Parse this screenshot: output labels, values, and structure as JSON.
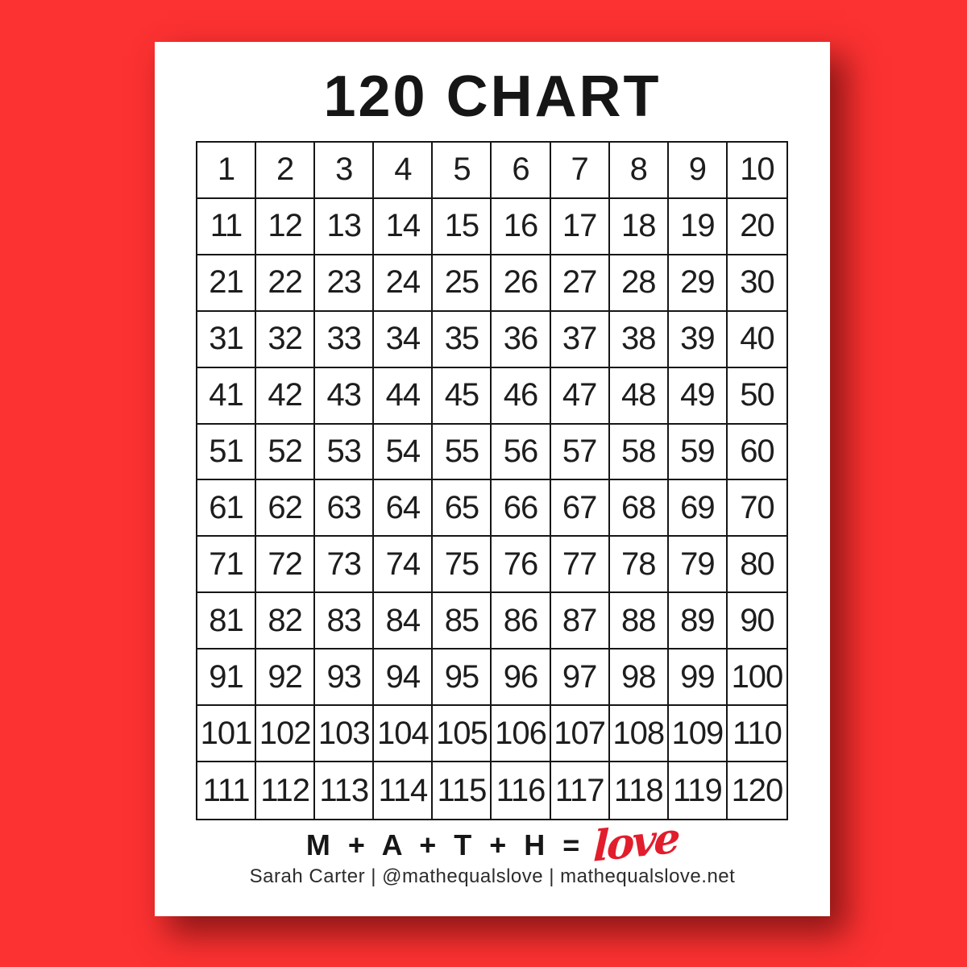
{
  "page": {
    "title": "120 CHART",
    "background_color": "#fc3131",
    "paper_color": "#ffffff",
    "line_color": "#161616"
  },
  "grid": {
    "columns": 10,
    "rows": 12,
    "numbers": [
      1,
      2,
      3,
      4,
      5,
      6,
      7,
      8,
      9,
      10,
      11,
      12,
      13,
      14,
      15,
      16,
      17,
      18,
      19,
      20,
      21,
      22,
      23,
      24,
      25,
      26,
      27,
      28,
      29,
      30,
      31,
      32,
      33,
      34,
      35,
      36,
      37,
      38,
      39,
      40,
      41,
      42,
      43,
      44,
      45,
      46,
      47,
      48,
      49,
      50,
      51,
      52,
      53,
      54,
      55,
      56,
      57,
      58,
      59,
      60,
      61,
      62,
      63,
      64,
      65,
      66,
      67,
      68,
      69,
      70,
      71,
      72,
      73,
      74,
      75,
      76,
      77,
      78,
      79,
      80,
      81,
      82,
      83,
      84,
      85,
      86,
      87,
      88,
      89,
      90,
      91,
      92,
      93,
      94,
      95,
      96,
      97,
      98,
      99,
      100,
      101,
      102,
      103,
      104,
      105,
      106,
      107,
      108,
      109,
      110,
      111,
      112,
      113,
      114,
      115,
      116,
      117,
      118,
      119,
      120
    ]
  },
  "footer": {
    "equation_prefix": "M + A + T + H =",
    "equation_suffix": "love",
    "accent_color": "#e21d2c",
    "credit": "Sarah Carter  |  @mathequalslove  |  mathequalslove.net"
  }
}
